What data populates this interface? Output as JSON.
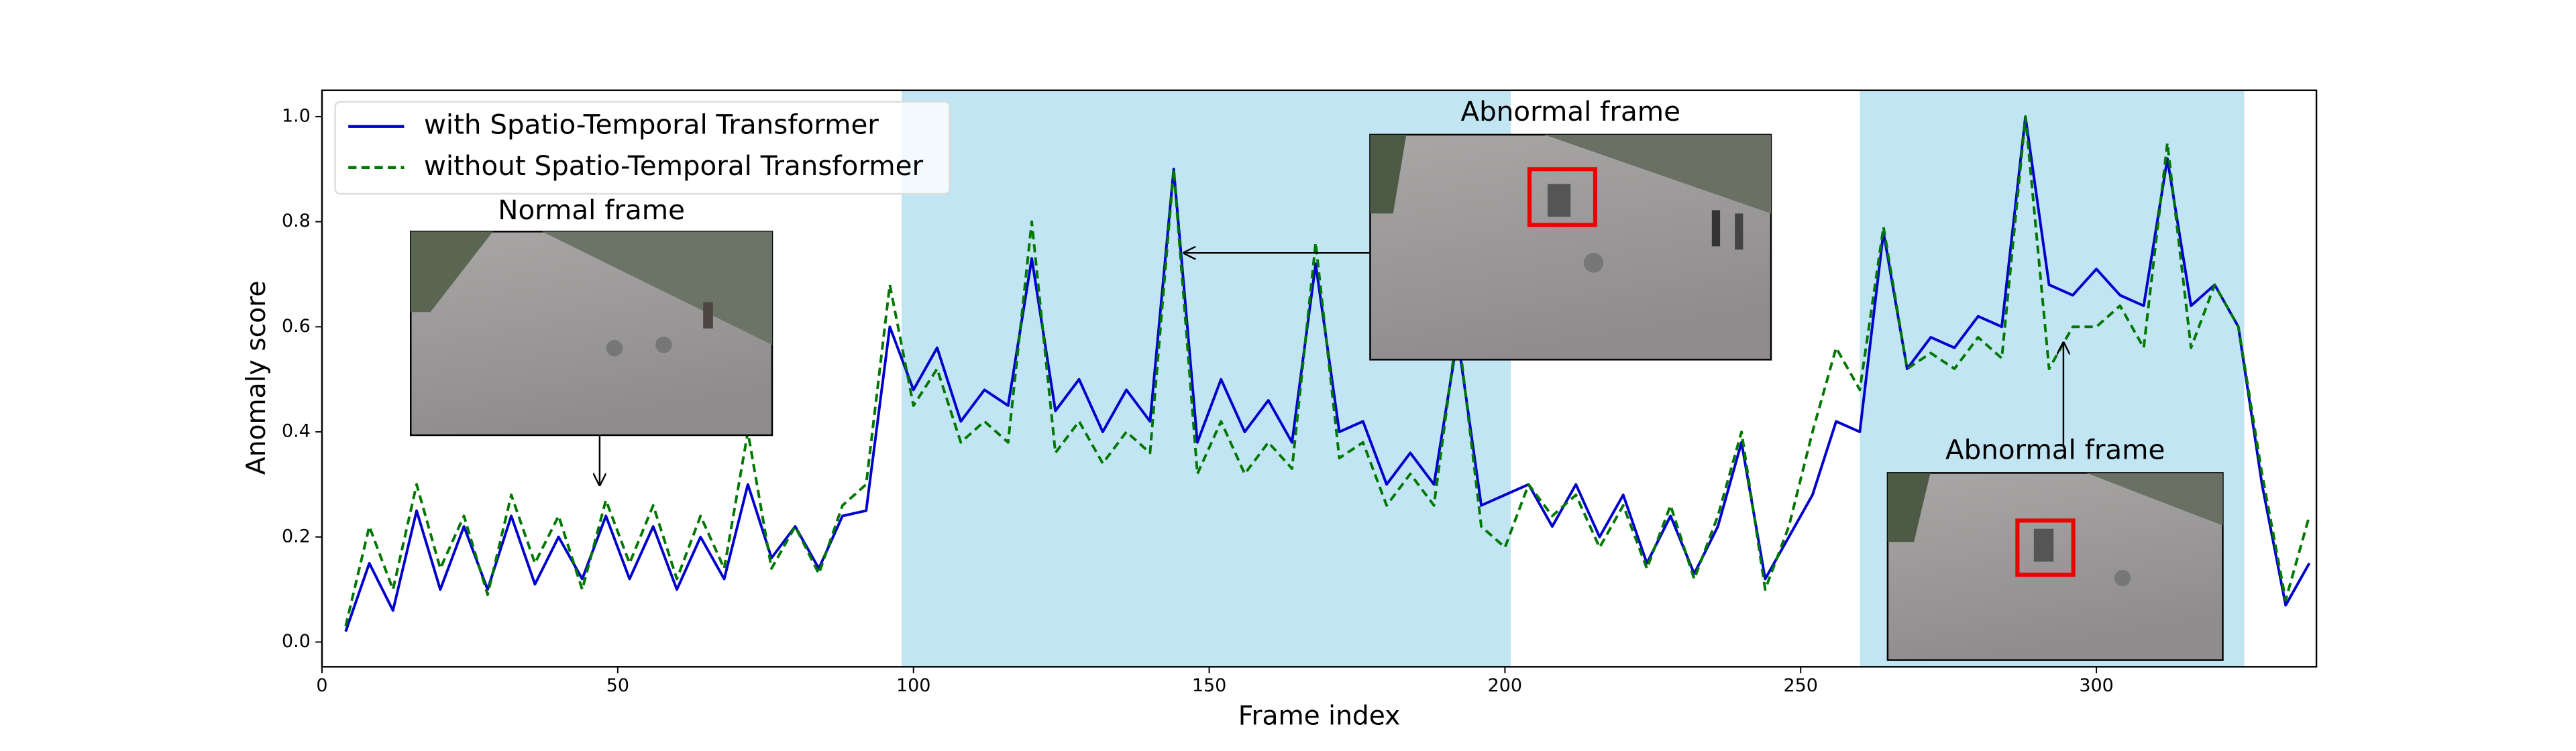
{
  "chart_data": {
    "type": "line",
    "xlabel": "Frame index",
    "ylabel": "Anomaly score",
    "x": [
      4,
      8,
      12,
      16,
      20,
      24,
      28,
      32,
      36,
      40,
      44,
      48,
      52,
      56,
      60,
      64,
      68,
      72,
      76,
      80,
      84,
      88,
      92,
      96,
      100,
      104,
      108,
      112,
      116,
      120,
      124,
      128,
      132,
      136,
      140,
      144,
      148,
      152,
      156,
      160,
      164,
      168,
      172,
      176,
      180,
      184,
      188,
      192,
      196,
      200,
      204,
      208,
      212,
      216,
      220,
      224,
      228,
      232,
      236,
      240,
      244,
      248,
      252,
      256,
      260,
      264,
      268,
      272,
      276,
      280,
      284,
      288,
      292,
      296,
      300,
      304,
      308,
      312,
      316,
      320,
      324,
      328,
      332,
      336
    ],
    "series": [
      {
        "name": "with Spatio-Temporal Transformer",
        "color": "#0000cc",
        "dash": false,
        "values": [
          0.02,
          0.15,
          0.06,
          0.25,
          0.1,
          0.22,
          0.1,
          0.24,
          0.11,
          0.2,
          0.12,
          0.24,
          0.12,
          0.22,
          0.1,
          0.2,
          0.12,
          0.3,
          0.16,
          0.22,
          0.14,
          0.24,
          0.25,
          0.6,
          0.48,
          0.56,
          0.42,
          0.48,
          0.45,
          0.73,
          0.44,
          0.5,
          0.4,
          0.48,
          0.42,
          0.9,
          0.38,
          0.5,
          0.4,
          0.46,
          0.38,
          0.72,
          0.4,
          0.42,
          0.3,
          0.36,
          0.3,
          0.58,
          0.26,
          0.28,
          0.3,
          0.22,
          0.3,
          0.2,
          0.28,
          0.15,
          0.24,
          0.13,
          0.22,
          0.38,
          0.12,
          0.2,
          0.28,
          0.42,
          0.4,
          0.78,
          0.52,
          0.58,
          0.56,
          0.62,
          0.6,
          1.0,
          0.68,
          0.66,
          0.71,
          0.66,
          0.64,
          0.92,
          0.64,
          0.68,
          0.6,
          0.3,
          0.07,
          0.15
        ]
      },
      {
        "name": "without Spatio-Temporal Transformer",
        "color": "#007700",
        "dash": true,
        "values": [
          0.03,
          0.22,
          0.1,
          0.3,
          0.14,
          0.24,
          0.09,
          0.28,
          0.15,
          0.24,
          0.1,
          0.27,
          0.15,
          0.26,
          0.12,
          0.24,
          0.14,
          0.4,
          0.14,
          0.22,
          0.13,
          0.26,
          0.3,
          0.68,
          0.45,
          0.52,
          0.38,
          0.42,
          0.38,
          0.8,
          0.36,
          0.42,
          0.34,
          0.4,
          0.36,
          0.9,
          0.32,
          0.42,
          0.32,
          0.38,
          0.33,
          0.76,
          0.35,
          0.38,
          0.26,
          0.32,
          0.26,
          0.6,
          0.22,
          0.18,
          0.3,
          0.24,
          0.28,
          0.18,
          0.26,
          0.14,
          0.26,
          0.12,
          0.24,
          0.4,
          0.1,
          0.22,
          0.4,
          0.56,
          0.48,
          0.79,
          0.52,
          0.55,
          0.52,
          0.58,
          0.54,
          1.0,
          0.52,
          0.6,
          0.6,
          0.64,
          0.56,
          0.95,
          0.56,
          0.68,
          0.6,
          0.32,
          0.08,
          0.24
        ]
      }
    ],
    "xlim": [
      0,
      337.2
    ],
    "ylim": [
      -0.047,
      1.05
    ],
    "xticks": [
      0,
      50,
      100,
      150,
      200,
      250,
      300
    ],
    "yticks": [
      {
        "value": 0,
        "label": "0.0"
      },
      0.2,
      0.4,
      0.6,
      0.8,
      {
        "value": 1,
        "label": "1.0"
      }
    ],
    "shaded_regions": [
      [
        98,
        201
      ],
      [
        260,
        325
      ]
    ],
    "shade_color": "#c2e5f3",
    "legend": "upper left",
    "annotations": [
      "Normal frame",
      "Abnormal frame",
      "Abnormal frame"
    ]
  }
}
